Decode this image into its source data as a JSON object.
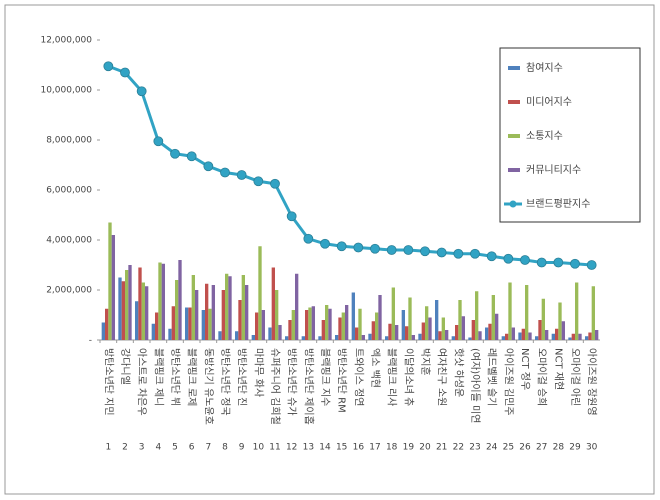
{
  "chart_data": {
    "type": "bar",
    "categories": [
      "방탄소년단 지민",
      "강다니엘",
      "아스트로 차은우",
      "블랙핑크 제니",
      "방탄소년단 뷔",
      "블랙핑크 로제",
      "동방신기 유노윤호",
      "방탄소년단 정국",
      "방탄소년단 진",
      "마마무 화사",
      "슈퍼주니어 김희철",
      "방탄소년단 슈가",
      "방탄소년단 제이홉",
      "블랙핑크 지수",
      "방탄소년단 RM",
      "트와이스 정연",
      "엑소 백현",
      "블랙핑크 리사",
      "이달의소녀 츄",
      "박지훈",
      "여자친구 소원",
      "핫샷 하성운",
      "(여자)아이들 미연",
      "레드벨벳 슬기",
      "아이즈원 김민주",
      "NCT 정우",
      "오마이걸 승희",
      "NCT 재현",
      "오마이걸 아린",
      "아이즈원 장원영"
    ],
    "category_numbers": [
      1,
      2,
      3,
      4,
      5,
      6,
      7,
      8,
      9,
      10,
      11,
      12,
      13,
      14,
      15,
      16,
      17,
      18,
      19,
      20,
      21,
      22,
      23,
      24,
      25,
      26,
      27,
      28,
      29,
      30
    ],
    "series": [
      {
        "name": "참여지수",
        "type": "bar",
        "color": "#4f81bd",
        "values": [
          700000,
          2500000,
          1550000,
          650000,
          450000,
          1300000,
          1200000,
          350000,
          350000,
          200000,
          500000,
          150000,
          150000,
          150000,
          200000,
          1900000,
          250000,
          150000,
          1200000,
          250000,
          1600000,
          150000,
          100000,
          500000,
          150000,
          300000,
          150000,
          250000,
          100000,
          150000
        ]
      },
      {
        "name": "미디어지수",
        "type": "bar",
        "color": "#c0504d",
        "values": [
          1250000,
          2350000,
          2900000,
          1100000,
          1350000,
          1300000,
          2250000,
          2000000,
          1600000,
          1100000,
          2900000,
          800000,
          1200000,
          800000,
          900000,
          500000,
          750000,
          650000,
          550000,
          700000,
          350000,
          600000,
          800000,
          650000,
          250000,
          450000,
          800000,
          450000,
          250000,
          300000
        ]
      },
      {
        "name": "소통지수",
        "type": "bar",
        "color": "#9bbb59",
        "values": [
          4700000,
          2800000,
          2300000,
          3100000,
          2400000,
          2600000,
          1250000,
          2650000,
          2600000,
          3750000,
          2000000,
          1200000,
          1300000,
          1400000,
          1100000,
          1250000,
          1100000,
          2100000,
          1700000,
          1350000,
          900000,
          1600000,
          1950000,
          1800000,
          2300000,
          2200000,
          1650000,
          1500000,
          2300000,
          2150000
        ]
      },
      {
        "name": "커뮤니티지수",
        "type": "bar",
        "color": "#8064a2",
        "values": [
          4200000,
          3000000,
          2150000,
          3050000,
          3200000,
          2000000,
          2200000,
          2550000,
          2200000,
          1200000,
          600000,
          2650000,
          1350000,
          1250000,
          1400000,
          200000,
          1800000,
          600000,
          200000,
          900000,
          400000,
          950000,
          350000,
          1050000,
          500000,
          300000,
          400000,
          750000,
          250000,
          400000
        ]
      },
      {
        "name": "브랜드평판지수",
        "type": "line",
        "color": "#31a3c4",
        "values": [
          10950000,
          10700000,
          9950000,
          7950000,
          7450000,
          7350000,
          6950000,
          6700000,
          6600000,
          6350000,
          6250000,
          4950000,
          4050000,
          3850000,
          3750000,
          3700000,
          3650000,
          3600000,
          3600000,
          3550000,
          3500000,
          3450000,
          3450000,
          3350000,
          3250000,
          3200000,
          3100000,
          3100000,
          3050000,
          3000000
        ]
      }
    ],
    "ylim": [
      0,
      12000000
    ],
    "yticks": [
      {
        "value": 0,
        "label": "-"
      },
      {
        "value": 2000000,
        "label": "2,000,000"
      },
      {
        "value": 4000000,
        "label": "4,000,000"
      },
      {
        "value": 6000000,
        "label": "6,000,000"
      },
      {
        "value": 8000000,
        "label": "8,000,000"
      },
      {
        "value": 10000000,
        "label": "10,000,000"
      },
      {
        "value": 12000000,
        "label": "12,000,000"
      }
    ],
    "legend": "top-right"
  }
}
